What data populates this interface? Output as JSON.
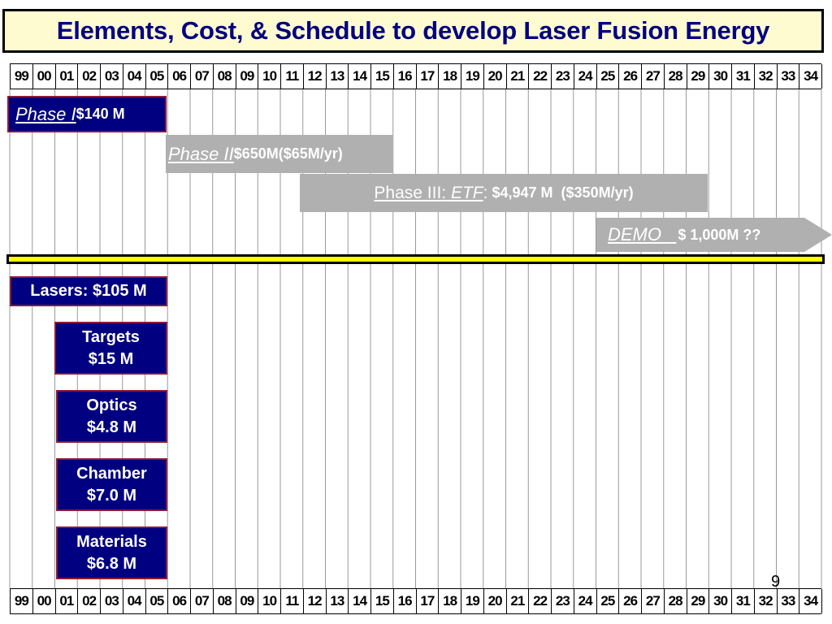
{
  "slide": {
    "title": "Elements, Cost, & Schedule to develop Laser Fusion Energy",
    "page_number": "9"
  },
  "years": [
    "99",
    "00",
    "01",
    "02",
    "03",
    "04",
    "05",
    "06",
    "07",
    "08",
    "09",
    "10",
    "11",
    "12",
    "13",
    "14",
    "15",
    "16",
    "17",
    "18",
    "19",
    "20",
    "21",
    "22",
    "23",
    "24",
    "25",
    "26",
    "27",
    "28",
    "29",
    "30",
    "31",
    "32",
    "33",
    "34"
  ],
  "phases": {
    "phase1": {
      "name": "Phase I ",
      "cost": "$140 M",
      "start": "99",
      "end": "05"
    },
    "phase2": {
      "name": "Phase II ",
      "cost": "$650M($65M/yr)",
      "start": "06",
      "end": "15"
    },
    "phase3": {
      "name_a": "Phase III:",
      "name_b": "ETF",
      "sep": ":",
      "cost": " $4,947 M  ($350M/yr)",
      "start": "12",
      "end": "29"
    },
    "demo": {
      "name": "DEMO   ",
      "cost": "$ 1,000M ??",
      "start": "25",
      "end": "34"
    }
  },
  "elements": [
    {
      "line1": "Lasers: $105 M",
      "line2": ""
    },
    {
      "line1": "Targets",
      "line2": "$15 M"
    },
    {
      "line1": "Optics",
      "line2": "$4.8 M"
    },
    {
      "line1": "Chamber",
      "line2": "$7.0 M"
    },
    {
      "line1": "Materials",
      "line2": "$6.8 M"
    }
  ],
  "colors": {
    "navy": "#000080",
    "gray": "#b0b0b0",
    "yellow": "#ffff00",
    "title_bg": "#fffbd0",
    "maroon_border": "#8b1a3a"
  }
}
